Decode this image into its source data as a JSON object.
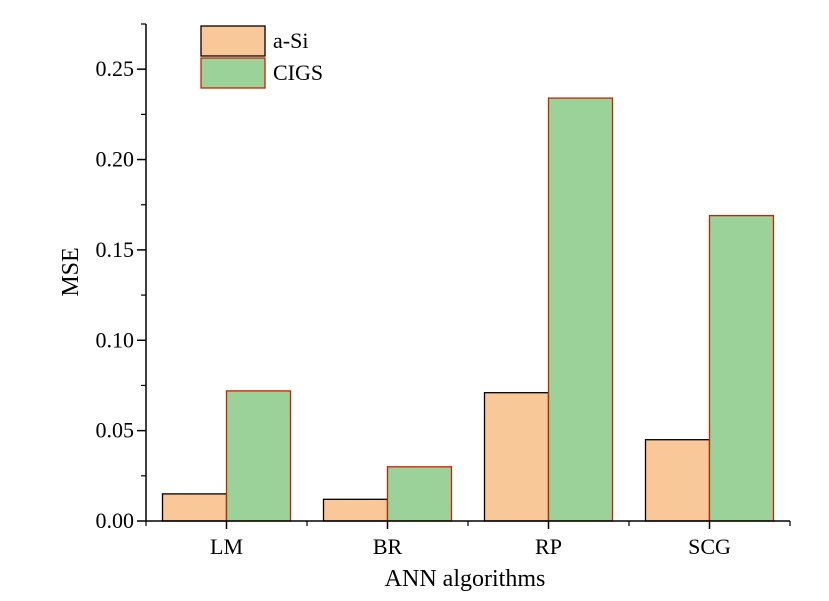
{
  "chart_data": {
    "type": "bar",
    "categories": [
      "LM",
      "BR",
      "RP",
      "SCG"
    ],
    "series": [
      {
        "name": "a-Si",
        "values": [
          0.015,
          0.012,
          0.071,
          0.045
        ],
        "fill": "#f9c899",
        "stroke": "#000000"
      },
      {
        "name": "CIGS",
        "values": [
          0.072,
          0.03,
          0.234,
          0.169
        ],
        "fill": "#9bd29a",
        "stroke": "#cc2200"
      }
    ],
    "xlabel": "ANN algorithms",
    "ylabel": "MSE",
    "ylim": [
      0,
      0.275
    ],
    "yticks": [
      "0.00",
      "0.05",
      "0.10",
      "0.15",
      "0.20",
      "0.25"
    ],
    "ytick_values": [
      0,
      0.05,
      0.1,
      0.15,
      0.2,
      0.25
    ],
    "legend_position": "top-left",
    "grid": false
  }
}
